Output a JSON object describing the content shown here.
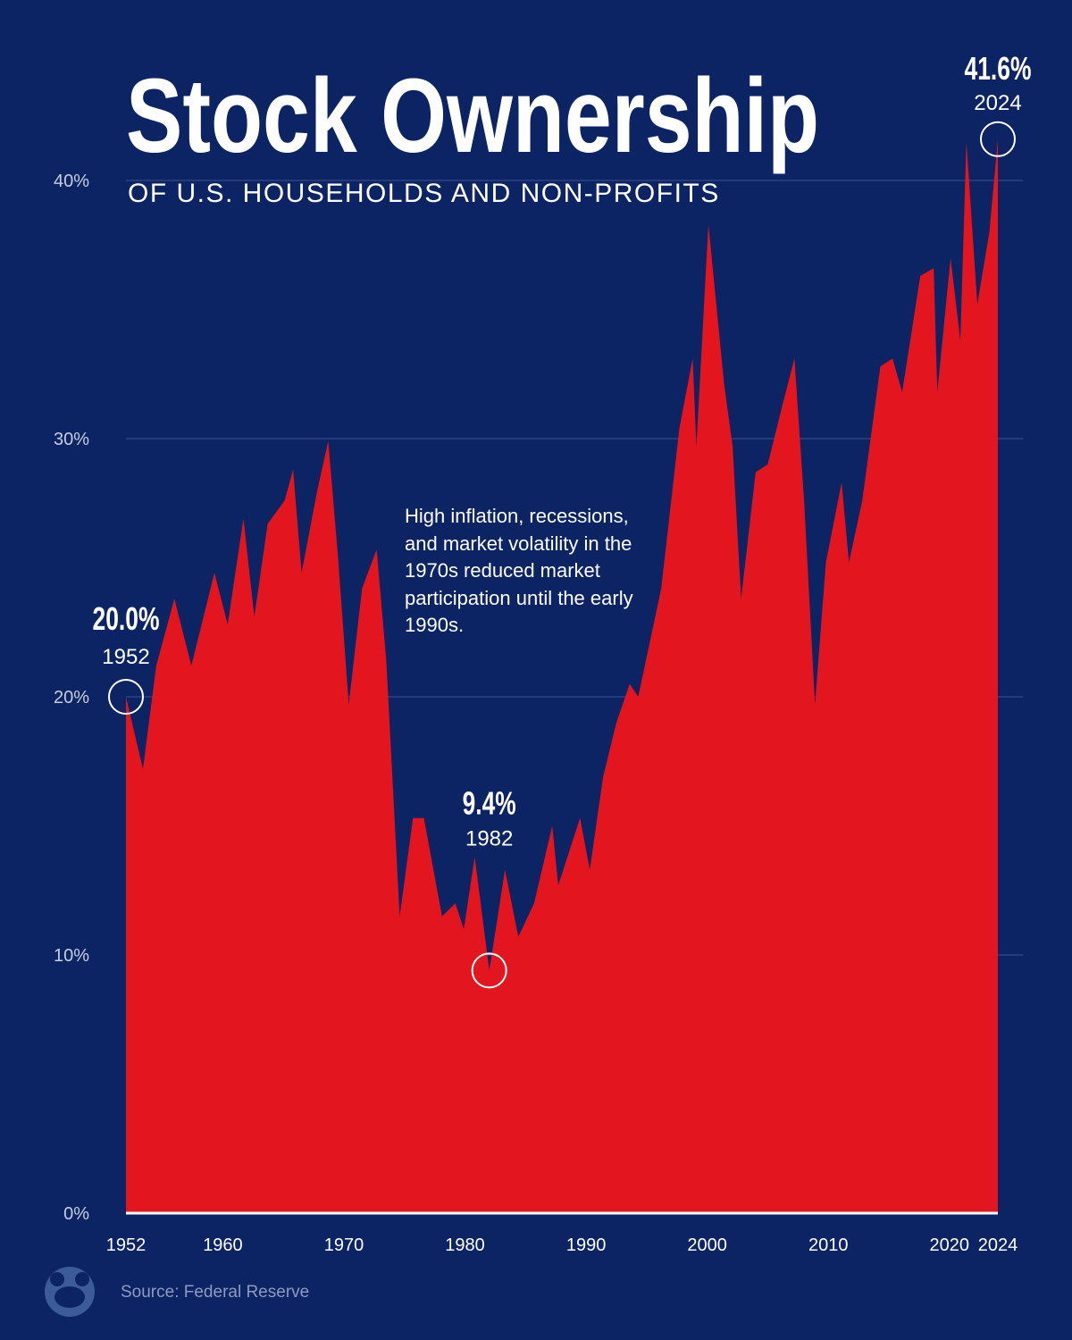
{
  "chart_data": {
    "type": "area",
    "title": "Stock Ownership",
    "subtitle": "OF U.S. HOUSEHOLDS AND NON-PROFITS",
    "source": "Source: Federal Reserve",
    "note": "High inflation, recessions, and market volatility in the 1970s reduced market participation until the early 1990s.",
    "color": "#e3161f",
    "grid": true,
    "xlim": [
      1952,
      2024
    ],
    "xticks": [
      1952,
      1960,
      1970,
      1980,
      1990,
      2000,
      2010,
      2020,
      2024
    ],
    "ylim": [
      0,
      40
    ],
    "yticks": [
      {
        "value": 0,
        "label": "0%"
      },
      {
        "value": 10,
        "label": "10%"
      },
      {
        "value": 20,
        "label": "20%"
      },
      {
        "value": 30,
        "label": "30%"
      },
      {
        "value": 40,
        "label": "40%"
      }
    ],
    "x": [
      1952,
      1953.4,
      1954.5,
      1956,
      1957.4,
      1959.3,
      1960.4,
      1961.7,
      1962.6,
      1963.7,
      1965.1,
      1965.8,
      1966.5,
      1967.8,
      1968.7,
      1969.5,
      1970.4,
      1971.5,
      1972.7,
      1973.5,
      1974.6,
      1975.7,
      1976.6,
      1978.1,
      1979.2,
      1979.9,
      1980.8,
      1982,
      1983.3,
      1984.4,
      1985.7,
      1987.2,
      1987.7,
      1989.5,
      1990.3,
      1991.4,
      1992.5,
      1993.6,
      1994.3,
      1996.2,
      1997.7,
      1998.8,
      1999.1,
      2000.1,
      2001.4,
      2002.1,
      2002.8,
      2004,
      2005,
      2006.1,
      2007.2,
      2008,
      2008.9,
      2009.8,
      2011.1,
      2011.7,
      2012.8,
      2014.3,
      2015.3,
      2016.1,
      2017.6,
      2018.7,
      2019,
      2020.1,
      2020.9,
      2021.4,
      2022.3,
      2023.3,
      2024
    ],
    "values": [
      20,
      17.2,
      21.2,
      23.8,
      21.2,
      24.8,
      22.8,
      26.9,
      23.1,
      26.7,
      27.6,
      28.8,
      24.8,
      28,
      29.9,
      25.5,
      19.7,
      24.2,
      25.7,
      21.4,
      11.5,
      15.3,
      15.3,
      11.5,
      12,
      11,
      13.8,
      9.4,
      13.3,
      10.7,
      12,
      15,
      12.7,
      15.3,
      13.3,
      16.9,
      19,
      20.5,
      20,
      24.2,
      30.4,
      33.1,
      29.7,
      38.3,
      32.1,
      29.7,
      23.8,
      28.7,
      29,
      31.1,
      33.1,
      27.6,
      19.7,
      25.2,
      28.3,
      25.2,
      27.6,
      32.8,
      33.1,
      31.8,
      36.3,
      36.6,
      31.8,
      37,
      33.8,
      41.5,
      35.2,
      38,
      41.6
    ],
    "annotations": [
      {
        "x": 1952,
        "value": 20,
        "label": "20.0%"
      },
      {
        "x": 1982,
        "value": 9.4,
        "label": "9.4%"
      },
      {
        "x": 2024,
        "value": 41.6,
        "label": "41.6%"
      }
    ]
  }
}
